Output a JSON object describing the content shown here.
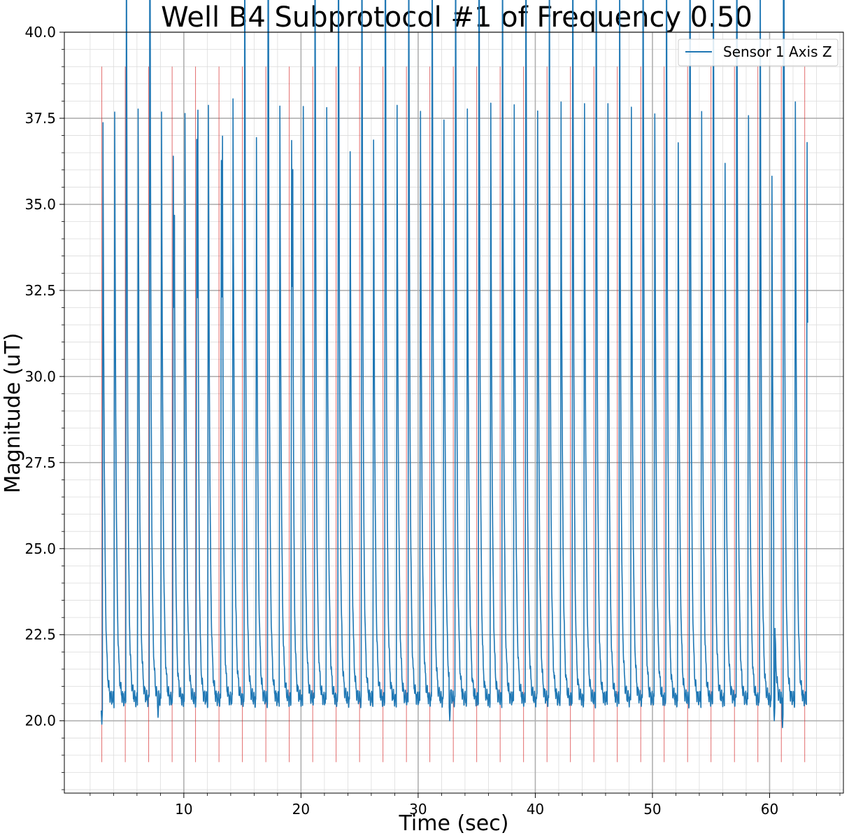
{
  "chart_data": {
    "type": "line",
    "title": "Well B4 Subprotocol #1 of Frequency 0.50",
    "xlabel": "Time (sec)",
    "ylabel": "Magnitude (uT)",
    "xlim": [
      -0.2,
      66.3
    ],
    "ylim": [
      17.9,
      40.0
    ],
    "x_ticks": [
      10,
      20,
      30,
      40,
      50,
      60
    ],
    "x_tick_labels": [
      "10",
      "20",
      "30",
      "40",
      "50",
      "60"
    ],
    "y_ticks": [
      20.0,
      22.5,
      25.0,
      27.5,
      30.0,
      32.5,
      35.0,
      37.5,
      40.0
    ],
    "y_tick_labels": [
      "20.0",
      "22.5",
      "25.0",
      "27.5",
      "30.0",
      "32.5",
      "35.0",
      "37.5",
      "40.0"
    ],
    "grid": true,
    "minor_grid": true,
    "legend_position": "top-right",
    "series": [
      {
        "name": "Sensor 1 Axis Z",
        "color": "#1f77b4",
        "baseline": 20.6,
        "peak_times": [
          3.1,
          4.1,
          5.1,
          6.1,
          7.1,
          8.1,
          9.1,
          10.1,
          11.1,
          12.1,
          13.2,
          14.2,
          15.2,
          16.2,
          17.2,
          18.2,
          19.2,
          20.2,
          21.2,
          22.2,
          23.2,
          24.2,
          25.2,
          26.2,
          27.2,
          28.2,
          29.2,
          30.2,
          31.2,
          32.2,
          33.2,
          34.2,
          35.2,
          36.2,
          37.2,
          38.2,
          39.2,
          40.2,
          41.2,
          42.2,
          43.2,
          44.2,
          45.2,
          46.2,
          47.2,
          48.2,
          49.2,
          50.2,
          51.2,
          52.2,
          53.2,
          54.2,
          55.2,
          56.2,
          57.2,
          58.2,
          59.2,
          60.2,
          61.2,
          62.2,
          63.2
        ],
        "peak_values": [
          37.2,
          37.6,
          37.6,
          37.9,
          37.3,
          37.9,
          36.4,
          37.7,
          36.7,
          37.8,
          36.5,
          38.1,
          36.4,
          36.8,
          37.7,
          37.7,
          36.8,
          37.9,
          36.7,
          38.0,
          37.5,
          36.6,
          37.8,
          36.8,
          37.8,
          37.9,
          36.3,
          37.9,
          37.7,
          37.6,
          37.8,
          37.7,
          36.4,
          37.8,
          37.2,
          37.9,
          36.3,
          37.8,
          36.3,
          37.9,
          36.2,
          37.7,
          36.2,
          37.8,
          36.9,
          37.9,
          36.8,
          37.7,
          37.8,
          36.7,
          37.6,
          37.6,
          37.6,
          36.3,
          36.7,
          37.8,
          36.0,
          35.9,
          36.9,
          37.9,
          36.6
        ],
        "secondary_peak_times": [
          5.1,
          7.1,
          9.2,
          11.2,
          13.3,
          15.2,
          17.2,
          19.3,
          21.2,
          23.2,
          25.2,
          27.2,
          29.2,
          31.2,
          33.2,
          35.2,
          37.2,
          39.2,
          41.2,
          43.2,
          45.2,
          47.2,
          49.2,
          51.2,
          53.2,
          55.2,
          57.2,
          59.2,
          61.2
        ],
        "secondary_peak_values": [
          27.4,
          32.2,
          27.3,
          30.4,
          29.4,
          28.9,
          30.7,
          28.6,
          29.0,
          29.8,
          29.0,
          30.1,
          29.4,
          28.0,
          28.0,
          29.8,
          28.0,
          30.6,
          28.6,
          30.0,
          30.2,
          26.8,
          30.0,
          27.8,
          30.2,
          27.1,
          30.5,
          28.2,
          36.9
        ],
        "minimum_dips": [
          {
            "x": 3.0,
            "y": 19.9
          },
          {
            "x": 7.8,
            "y": 20.1
          },
          {
            "x": 32.7,
            "y": 20.0
          },
          {
            "x": 60.4,
            "y": 20.0
          },
          {
            "x": 61.1,
            "y": 19.8
          }
        ]
      }
    ],
    "vlines": {
      "color": "#d62728",
      "ymin": 18.8,
      "ymax": 39.0,
      "x": [
        3.0,
        5.0,
        7.0,
        9.0,
        11.0,
        13.0,
        15.0,
        17.0,
        19.0,
        21.0,
        23.0,
        25.0,
        27.0,
        29.0,
        31.0,
        33.0,
        35.0,
        37.0,
        39.0,
        41.0,
        43.0,
        45.0,
        47.0,
        49.0,
        51.0,
        53.0,
        55.0,
        57.0,
        59.0,
        61.0,
        63.0
      ]
    }
  }
}
